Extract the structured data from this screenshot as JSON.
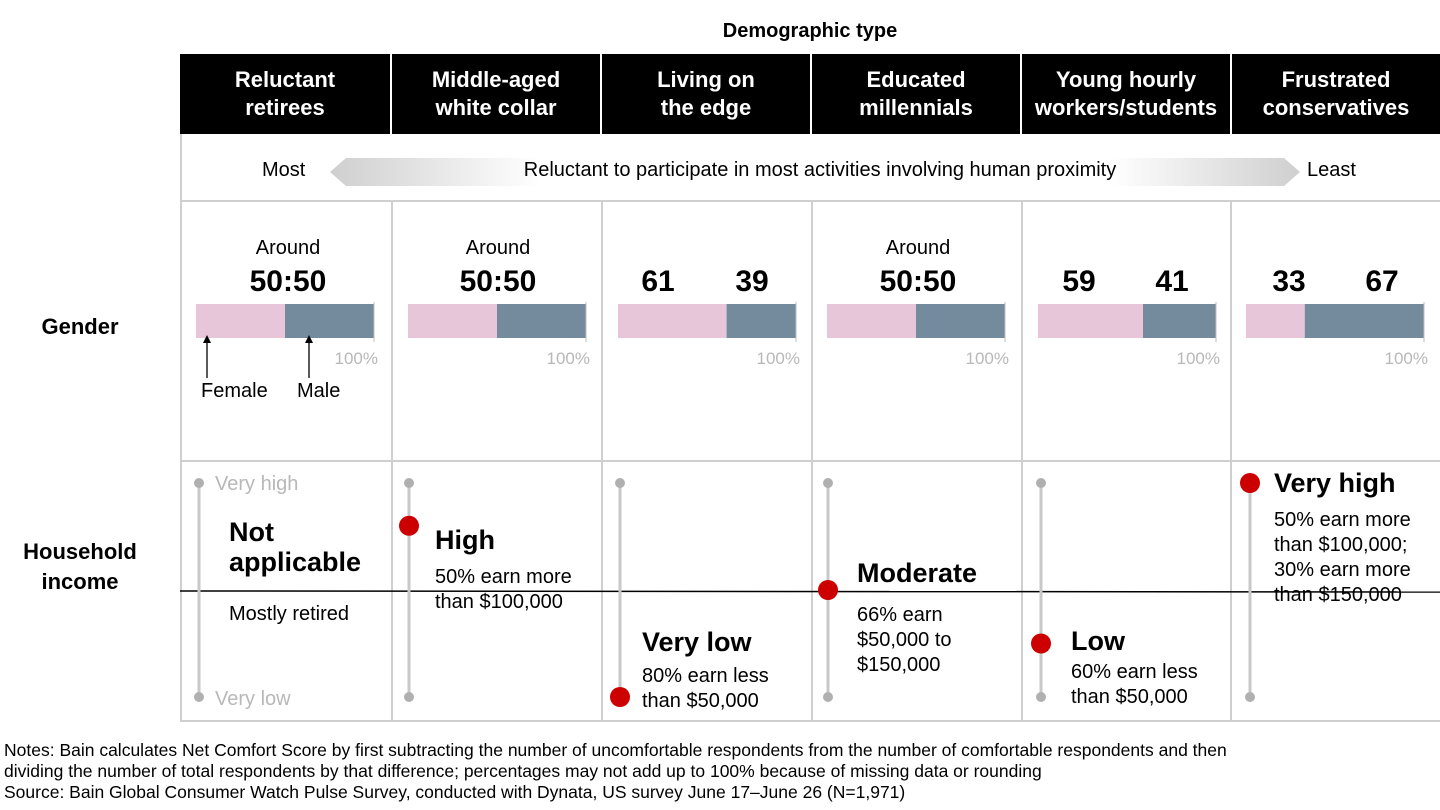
{
  "super_header": "Demographic type",
  "segments": [
    {
      "name_line1": "Reluctant",
      "name_line2": "retirees"
    },
    {
      "name_line1": "Middle-aged",
      "name_line2": "white collar"
    },
    {
      "name_line1": "Living on",
      "name_line2": "the edge"
    },
    {
      "name_line1": "Educated",
      "name_line2": "millennials"
    },
    {
      "name_line1": "Young hourly",
      "name_line2": "workers/students"
    },
    {
      "name_line1": "Frustrated",
      "name_line2": "conservatives"
    }
  ],
  "proximity": {
    "left": "Most",
    "text": "Reluctant to participate in most activities involving human proximity",
    "right": "Least"
  },
  "row_labels": {
    "gender": "Gender",
    "income_line1": "Household",
    "income_line2": "income"
  },
  "chart_data": {
    "type": "bar",
    "title": "Gender",
    "series": [
      {
        "name": "Female",
        "values": [
          50,
          50,
          61,
          50,
          59,
          33
        ]
      },
      {
        "name": "Male",
        "values": [
          50,
          50,
          39,
          50,
          41,
          67
        ]
      }
    ],
    "gender_labels": [
      {
        "around": "Around",
        "big": "50:50"
      },
      {
        "around": "Around",
        "big": "50:50"
      },
      {
        "left": "61",
        "right": "39"
      },
      {
        "around": "Around",
        "big": "50:50"
      },
      {
        "left": "59",
        "right": "41"
      },
      {
        "left": "33",
        "right": "67"
      }
    ],
    "axis_end_label": "100%",
    "legend": {
      "female": "Female",
      "male": "Male"
    },
    "colors": {
      "female": "#e6c6d8",
      "male": "#748a9d",
      "marker": "#cc0000"
    },
    "income_scale": {
      "high": "Very high",
      "low": "Very low"
    },
    "income": [
      {
        "level": null,
        "title_line1": "Not",
        "title_line2": "applicable",
        "desc": [
          "Mostly retired"
        ]
      },
      {
        "level": 0.8,
        "title": "High",
        "desc": [
          "50% earn more",
          "than $100,000"
        ]
      },
      {
        "level": 0.0,
        "title": "Very low",
        "desc": [
          "80% earn less",
          "than $50,000"
        ]
      },
      {
        "level": 0.5,
        "title": "Moderate",
        "desc": [
          "66% earn",
          "$50,000 to",
          "$150,000"
        ]
      },
      {
        "level": 0.25,
        "title": "Low",
        "desc": [
          "60% earn less",
          "than $50,000"
        ]
      },
      {
        "level": 1.0,
        "title": "Very high",
        "desc": [
          "50% earn more",
          "than $100,000;",
          "30% earn more",
          "than $150,000"
        ]
      }
    ]
  },
  "notes": {
    "line1": "Notes: Bain calculates Net Comfort Score by first subtracting the number of uncomfortable respondents from the number of comfortable respondents and then",
    "line2": "dividing the number of total respondents by that difference; percentages may not add up to 100% because of missing data or rounding",
    "line3": "Source: Bain Global Consumer Watch Pulse Survey, conducted with Dynata, US survey June 17–June 26 (N=1,971)"
  }
}
